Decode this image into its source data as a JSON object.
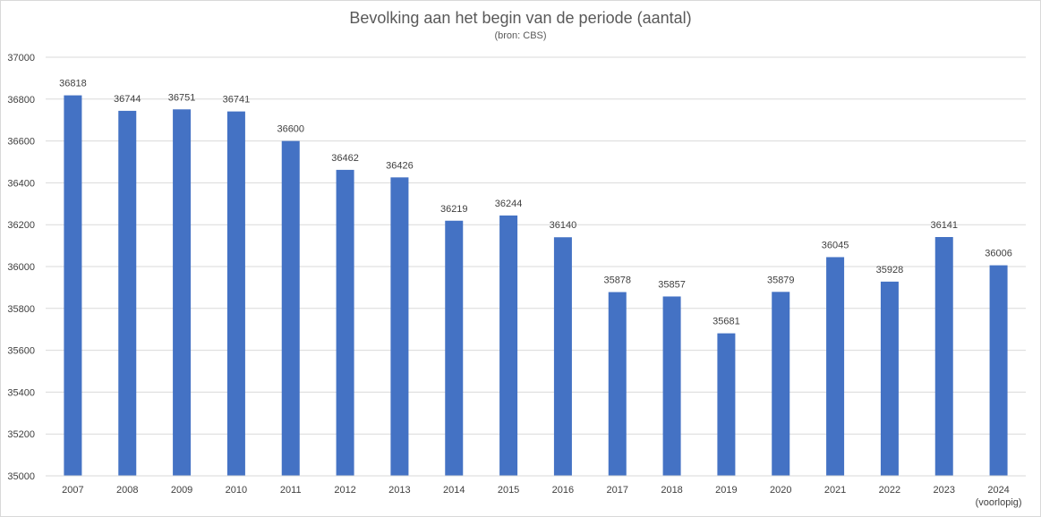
{
  "chart_data": {
    "type": "bar",
    "title": "Bevolking aan het begin van de periode (aantal)",
    "subtitle": "(bron: CBS)",
    "categories": [
      "2007",
      "2008",
      "2009",
      "2010",
      "2011",
      "2012",
      "2013",
      "2014",
      "2015",
      "2016",
      "2017",
      "2018",
      "2019",
      "2020",
      "2021",
      "2022",
      "2023",
      "2024"
    ],
    "category_sublabels": [
      "",
      "",
      "",
      "",
      "",
      "",
      "",
      "",
      "",
      "",
      "",
      "",
      "",
      "",
      "",
      "",
      "",
      "(voorlopig)"
    ],
    "values": [
      36818,
      36744,
      36751,
      36741,
      36600,
      36462,
      36426,
      36219,
      36244,
      36140,
      35878,
      35857,
      35681,
      35879,
      36045,
      35928,
      36141,
      36006
    ],
    "ylim": [
      35000,
      37000
    ],
    "yticks": [
      35000,
      35200,
      35400,
      35600,
      35800,
      36000,
      36200,
      36400,
      36600,
      36800,
      37000
    ],
    "xlabel": "",
    "ylabel": "",
    "grid": true,
    "bar_color": "#4472c4",
    "grid_color": "#d9d9d9",
    "text_color": "#404040"
  }
}
